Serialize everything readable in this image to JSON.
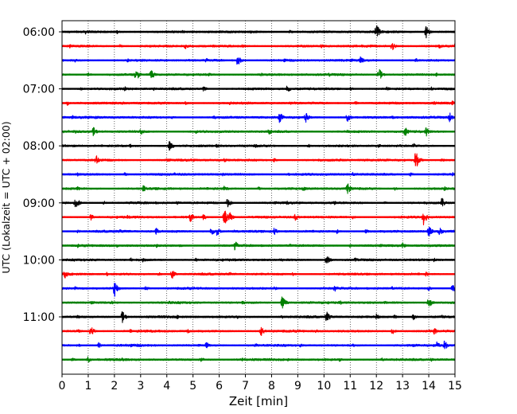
{
  "chart_data": {
    "type": "line",
    "title": "",
    "xlabel": "Zeit  [min]",
    "ylabel": "UTC (Lokalzeit = UTC + 02:00)",
    "xlim": [
      0,
      15
    ],
    "x_ticks": [
      "0",
      "1",
      "2",
      "3",
      "4",
      "5",
      "6",
      "7",
      "8",
      "9",
      "10",
      "11",
      "12",
      "13",
      "14",
      "15"
    ],
    "y_ticks": [
      "06:00",
      "07:00",
      "08:00",
      "09:00",
      "10:00",
      "11:00"
    ],
    "grid": "vertical dotted",
    "trace_colors": [
      "#000000",
      "#ff0000",
      "#0000ff",
      "#008000"
    ],
    "series": [
      {
        "start": "06:00",
        "events": [
          [
            0.9,
            0.35
          ],
          [
            2.1,
            0.3
          ],
          [
            4.6,
            0.3
          ],
          [
            7.2,
            0.25
          ],
          [
            8.7,
            0.3
          ],
          [
            12.0,
            1.3
          ],
          [
            13.9,
            0.95
          ]
        ]
      },
      {
        "start": "06:15",
        "events": [
          [
            0.3,
            0.3
          ],
          [
            2.2,
            0.3
          ],
          [
            4.7,
            0.5
          ],
          [
            6.9,
            0.3
          ],
          [
            9.9,
            0.35
          ],
          [
            12.6,
            0.75
          ],
          [
            14.4,
            0.4
          ],
          [
            15.0,
            0.6
          ]
        ]
      },
      {
        "start": "06:30",
        "events": [
          [
            0.5,
            0.3
          ],
          [
            2.5,
            0.3
          ],
          [
            5.5,
            0.35
          ],
          [
            6.7,
            0.85
          ],
          [
            8.5,
            0.3
          ],
          [
            11.4,
            0.6
          ],
          [
            13.5,
            0.35
          ]
        ]
      },
      {
        "start": "06:45",
        "events": [
          [
            1.0,
            0.35
          ],
          [
            2.8,
            0.6
          ],
          [
            2.9,
            0.55
          ],
          [
            3.4,
            0.75
          ],
          [
            5.6,
            0.3
          ],
          [
            7.6,
            0.3
          ],
          [
            10.2,
            0.3
          ],
          [
            12.1,
            0.95
          ],
          [
            14.3,
            0.3
          ]
        ]
      },
      {
        "start": "07:00",
        "events": [
          [
            0.7,
            0.3
          ],
          [
            2.4,
            0.35
          ],
          [
            3.5,
            0.3
          ],
          [
            5.4,
            0.4
          ],
          [
            8.6,
            0.6
          ],
          [
            11.0,
            0.3
          ],
          [
            12.4,
            0.35
          ],
          [
            14.1,
            0.3
          ]
        ]
      },
      {
        "start": "07:15",
        "events": [
          [
            0.2,
            0.35
          ],
          [
            2.3,
            0.3
          ],
          [
            4.7,
            0.3
          ],
          [
            6.4,
            0.3
          ],
          [
            8.7,
            0.3
          ],
          [
            11.2,
            0.3
          ],
          [
            14.2,
            0.3
          ],
          [
            14.9,
            0.4
          ]
        ]
      },
      {
        "start": "07:30",
        "events": [
          [
            0.4,
            0.3
          ],
          [
            1.3,
            0.35
          ],
          [
            4.2,
            0.3
          ],
          [
            5.8,
            0.3
          ],
          [
            8.3,
            0.9
          ],
          [
            9.3,
            0.85
          ],
          [
            10.9,
            0.85
          ],
          [
            12.6,
            0.35
          ],
          [
            14.8,
            0.8
          ]
        ]
      },
      {
        "start": "07:45",
        "events": [
          [
            0.5,
            0.3
          ],
          [
            1.2,
            0.7
          ],
          [
            3.0,
            0.55
          ],
          [
            5.1,
            0.3
          ],
          [
            7.9,
            0.55
          ],
          [
            10.9,
            0.3
          ],
          [
            13.1,
            0.75
          ],
          [
            13.9,
            0.85
          ]
        ]
      },
      {
        "start": "08:00",
        "events": [
          [
            0.4,
            0.3
          ],
          [
            2.6,
            0.3
          ],
          [
            4.1,
            0.8
          ],
          [
            5.9,
            0.3
          ],
          [
            7.4,
            0.35
          ],
          [
            9.4,
            0.3
          ],
          [
            12.1,
            0.35
          ],
          [
            13.4,
            0.5
          ]
        ]
      },
      {
        "start": "08:15",
        "events": [
          [
            1.3,
            0.8
          ],
          [
            4.0,
            0.3
          ],
          [
            6.2,
            0.3
          ],
          [
            8.1,
            0.35
          ],
          [
            10.6,
            0.3
          ],
          [
            13.5,
            1.4
          ],
          [
            14.5,
            0.3
          ]
        ]
      },
      {
        "start": "08:30",
        "events": [
          [
            0.6,
            0.3
          ],
          [
            2.4,
            0.3
          ],
          [
            4.3,
            0.3
          ],
          [
            6.1,
            0.3
          ],
          [
            8.6,
            0.3
          ],
          [
            11.1,
            0.3
          ],
          [
            13.3,
            0.3
          ],
          [
            14.9,
            0.35
          ]
        ]
      },
      {
        "start": "08:45",
        "events": [
          [
            0.6,
            0.35
          ],
          [
            3.1,
            0.6
          ],
          [
            6.2,
            0.45
          ],
          [
            7.5,
            0.3
          ],
          [
            9.2,
            0.45
          ],
          [
            10.9,
            0.85
          ],
          [
            12.7,
            0.3
          ],
          [
            14.6,
            0.35
          ]
        ]
      },
      {
        "start": "09:00",
        "events": [
          [
            0.5,
            0.9
          ],
          [
            0.6,
            0.55
          ],
          [
            1.6,
            0.35
          ],
          [
            4.4,
            0.35
          ],
          [
            6.3,
            0.85
          ],
          [
            8.6,
            0.3
          ],
          [
            10.4,
            0.3
          ],
          [
            12.3,
            0.3
          ],
          [
            14.5,
            0.8
          ]
        ]
      },
      {
        "start": "09:15",
        "events": [
          [
            1.1,
            0.5
          ],
          [
            2.5,
            0.3
          ],
          [
            4.9,
            0.75
          ],
          [
            5.4,
            0.5
          ],
          [
            6.2,
            1.3
          ],
          [
            6.4,
            0.75
          ],
          [
            8.9,
            0.55
          ],
          [
            11.1,
            0.3
          ],
          [
            13.8,
            1.2
          ]
        ]
      },
      {
        "start": "09:30",
        "events": [
          [
            0.6,
            0.3
          ],
          [
            2.2,
            0.3
          ],
          [
            3.6,
            0.55
          ],
          [
            5.7,
            0.65
          ],
          [
            5.9,
            0.8
          ],
          [
            6.6,
            0.3
          ],
          [
            8.1,
            0.6
          ],
          [
            10.5,
            0.35
          ],
          [
            11.6,
            0.35
          ],
          [
            14.0,
            0.85
          ],
          [
            14.4,
            0.7
          ]
        ]
      },
      {
        "start": "09:45",
        "events": [
          [
            0.6,
            0.3
          ],
          [
            2.1,
            0.3
          ],
          [
            3.6,
            0.3
          ],
          [
            4.5,
            0.3
          ],
          [
            6.6,
            0.75
          ],
          [
            8.7,
            0.3
          ],
          [
            11.0,
            0.3
          ],
          [
            13.0,
            0.45
          ]
        ]
      },
      {
        "start": "10:00",
        "events": [
          [
            1.3,
            0.3
          ],
          [
            2.6,
            0.4
          ],
          [
            3.1,
            0.4
          ],
          [
            5.1,
            0.3
          ],
          [
            8.4,
            0.3
          ],
          [
            10.1,
            0.8
          ],
          [
            11.2,
            0.4
          ],
          [
            14.2,
            0.3
          ]
        ]
      },
      {
        "start": "10:15",
        "events": [
          [
            0.1,
            0.75
          ],
          [
            1.7,
            0.3
          ],
          [
            3.7,
            0.3
          ],
          [
            4.2,
            0.75
          ],
          [
            6.4,
            0.3
          ],
          [
            8.8,
            0.3
          ],
          [
            11.1,
            0.3
          ],
          [
            13.9,
            0.4
          ]
        ]
      },
      {
        "start": "10:30",
        "events": [
          [
            0.5,
            0.3
          ],
          [
            2.0,
            1.35
          ],
          [
            3.2,
            0.35
          ],
          [
            5.3,
            0.3
          ],
          [
            8.1,
            0.35
          ],
          [
            10.4,
            0.65
          ],
          [
            12.6,
            0.3
          ],
          [
            14.0,
            0.35
          ],
          [
            14.9,
            0.7
          ]
        ]
      },
      {
        "start": "10:45",
        "events": [
          [
            1.1,
            0.3
          ],
          [
            1.9,
            0.3
          ],
          [
            4.1,
            0.3
          ],
          [
            6.9,
            0.3
          ],
          [
            8.4,
            1.1
          ],
          [
            10.6,
            0.35
          ],
          [
            12.3,
            0.3
          ],
          [
            14.0,
            0.9
          ]
        ]
      },
      {
        "start": "11:00",
        "events": [
          [
            0.6,
            0.3
          ],
          [
            2.3,
            0.9
          ],
          [
            4.4,
            0.3
          ],
          [
            6.7,
            0.3
          ],
          [
            8.4,
            0.3
          ],
          [
            10.1,
            0.9
          ],
          [
            12.0,
            0.5
          ],
          [
            12.7,
            0.35
          ],
          [
            13.4,
            0.55
          ],
          [
            14.5,
            0.3
          ]
        ]
      },
      {
        "start": "11:15",
        "events": [
          [
            0.6,
            0.3
          ],
          [
            1.1,
            0.8
          ],
          [
            2.6,
            0.3
          ],
          [
            4.8,
            0.3
          ],
          [
            7.6,
            0.75
          ],
          [
            9.7,
            0.3
          ],
          [
            12.6,
            0.55
          ],
          [
            14.2,
            0.65
          ]
        ]
      },
      {
        "start": "11:30",
        "events": [
          [
            0.6,
            0.3
          ],
          [
            1.4,
            0.45
          ],
          [
            2.6,
            0.3
          ],
          [
            5.5,
            0.55
          ],
          [
            7.4,
            0.3
          ],
          [
            9.1,
            0.3
          ],
          [
            11.1,
            0.3
          ],
          [
            13.4,
            0.3
          ],
          [
            14.3,
            0.65
          ],
          [
            14.6,
            0.75
          ]
        ]
      },
      {
        "start": "11:45",
        "events": [
          [
            0.4,
            0.3
          ],
          [
            1.0,
            0.55
          ],
          [
            2.3,
            0.3
          ],
          [
            5.3,
            0.45
          ],
          [
            6.9,
            0.3
          ],
          [
            8.6,
            0.3
          ],
          [
            10.6,
            0.3
          ],
          [
            12.2,
            0.3
          ],
          [
            14.1,
            0.3
          ]
        ]
      }
    ]
  }
}
